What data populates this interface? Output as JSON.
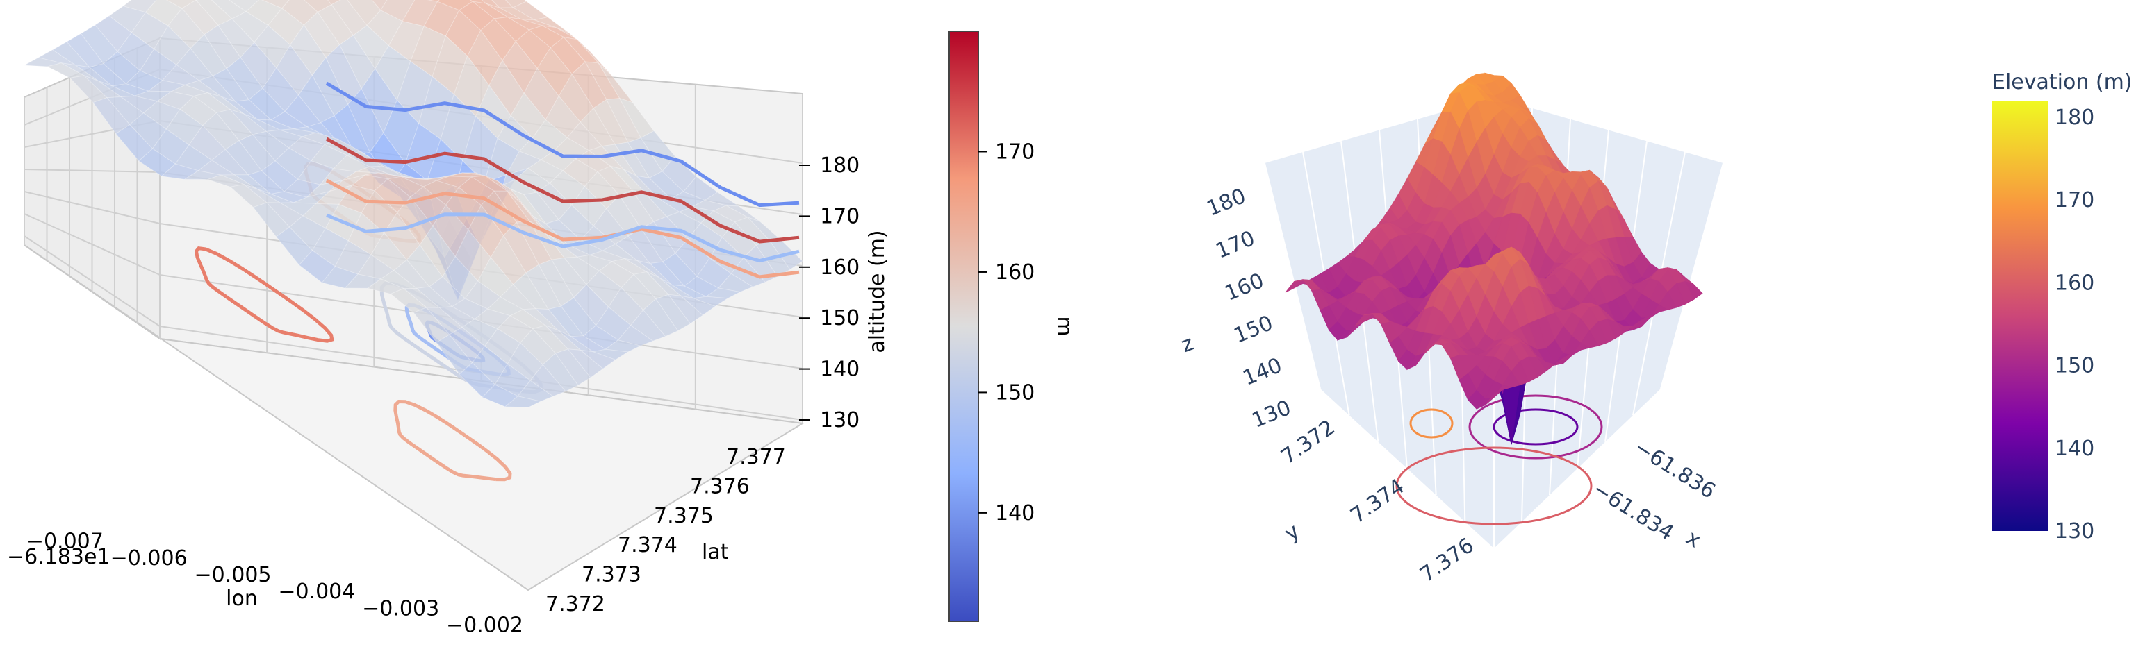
{
  "chart_data": [
    {
      "type": "surface",
      "renderer": "matplotlib",
      "colormap": "coolwarm",
      "xlabel": "lon",
      "ylabel": "lat",
      "zlabel": "altitude (m)",
      "x_offset_text": "−6.183e1",
      "x_ticks": [
        "−0.007",
        "−0.006",
        "−0.005",
        "−0.004",
        "−0.003",
        "−0.002"
      ],
      "y_ticks": [
        "7.372",
        "7.373",
        "7.374",
        "7.375",
        "7.376",
        "7.377"
      ],
      "z_ticks": [
        "130",
        "140",
        "150",
        "160",
        "170",
        "180"
      ],
      "zlim": [
        130,
        182
      ],
      "grid": true,
      "projected_contours": true,
      "colorbar": {
        "label": "m",
        "range": [
          131,
          180
        ],
        "ticks": [
          "140",
          "150",
          "160",
          "170"
        ]
      }
    },
    {
      "type": "surface",
      "renderer": "plotly",
      "colorscale": "plasma",
      "xlabel": "x",
      "ylabel": "y",
      "zlabel": "z",
      "x_ticks": [
        "−61.836",
        "−61.834"
      ],
      "y_ticks": [
        "7.372",
        "7.374",
        "7.376"
      ],
      "z_ticks": [
        "130",
        "140",
        "150",
        "160",
        "170",
        "180"
      ],
      "zlim": [
        130,
        182
      ],
      "projected_contours": true,
      "colorbar": {
        "title": "Elevation (m)",
        "range": [
          130,
          182
        ],
        "ticks": [
          "130",
          "140",
          "150",
          "160",
          "170",
          "180"
        ]
      }
    }
  ]
}
